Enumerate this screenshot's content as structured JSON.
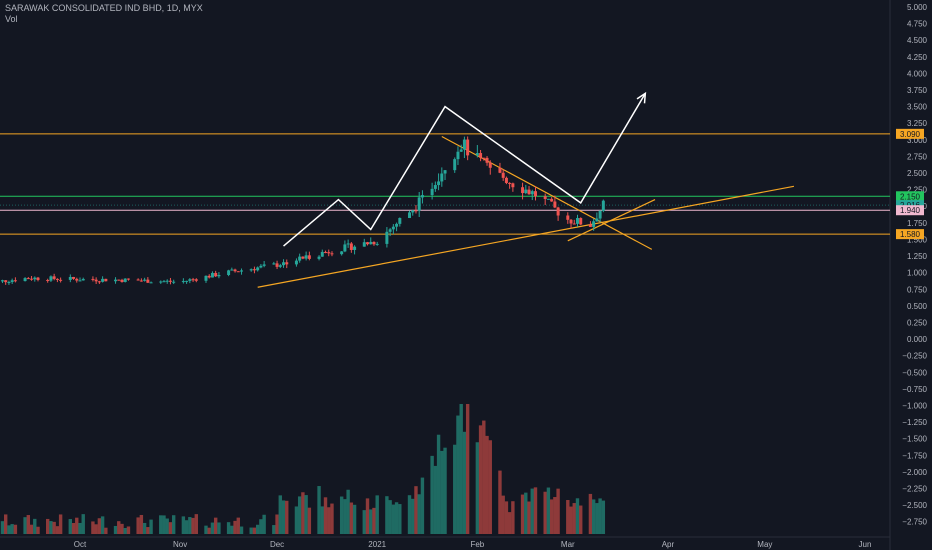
{
  "header": {
    "symbol_line": "SARAWAK CONSOLIDATED IND BHD, 1D, MYX",
    "volume_label": "Vol"
  },
  "colors": {
    "background": "#131722",
    "up": "#26a69a",
    "down": "#ef5350",
    "vol_up": "#1f6b63",
    "vol_down": "#8e3a3a",
    "orange": "#f5a623",
    "green_line": "#22c55e",
    "pink_line": "#f0b8cf",
    "white": "#ffffff"
  },
  "chart_data": {
    "type": "candlestick",
    "title": "SARAWAK CONSOLIDATED IND BHD, 1D, MYX",
    "y_axis": {
      "min": -2.875,
      "max": 5.0,
      "ticks": [
        "5.000",
        "4.750",
        "4.500",
        "4.250",
        "4.000",
        "3.750",
        "3.500",
        "3.250",
        "3.000",
        "2.750",
        "2.500",
        "2.250",
        "2.000",
        "1.750",
        "1.500",
        "1.250",
        "1.000",
        "0.750",
        "0.500",
        "0.250",
        "0.000",
        "−0.250",
        "−0.500",
        "−0.750",
        "−1.000",
        "−1.250",
        "−1.500",
        "−1.750",
        "−2.000",
        "−2.250",
        "−2.500",
        "−2.750"
      ]
    },
    "x_axis": {
      "labels": [
        "Oct",
        "Nov",
        "Dec",
        "2021",
        "Feb",
        "Mar",
        "Apr",
        "May",
        "Jun"
      ],
      "label_dates": [
        "2020-10-01",
        "2020-11-01",
        "2020-12-01",
        "2021-01-01",
        "2021-02-01",
        "2021-03-01",
        "2021-04-01",
        "2021-05-01",
        "2021-06-01"
      ]
    },
    "price_levels": [
      {
        "value": 3.09,
        "label": "3.090",
        "color": "#f5a623"
      },
      {
        "value": 2.15,
        "label": "2.150",
        "color": "#22c55e"
      },
      {
        "value": 2.016,
        "label": "2.016",
        "color": "#26a69a"
      },
      {
        "value": 1.94,
        "label": "1.940",
        "color": "#f0b8cf"
      },
      {
        "value": 1.58,
        "label": "1.580",
        "color": "#f5a623"
      }
    ],
    "price_series": [
      {
        "date": "2020-09-01",
        "close": 0.84
      },
      {
        "date": "2020-09-15",
        "close": 0.92
      },
      {
        "date": "2020-10-01",
        "close": 0.9
      },
      {
        "date": "2020-10-15",
        "close": 0.89
      },
      {
        "date": "2020-11-01",
        "close": 0.86
      },
      {
        "date": "2020-11-15",
        "close": 1.0
      },
      {
        "date": "2020-12-01",
        "close": 1.12
      },
      {
        "date": "2020-12-15",
        "close": 1.3
      },
      {
        "date": "2021-01-01",
        "close": 1.48
      },
      {
        "date": "2021-01-15",
        "close": 2.1
      },
      {
        "date": "2021-01-22",
        "close": 2.62
      },
      {
        "date": "2021-01-27",
        "close": 2.95
      },
      {
        "date": "2021-02-01",
        "close": 2.7
      },
      {
        "date": "2021-02-10",
        "close": 2.4
      },
      {
        "date": "2021-02-20",
        "close": 2.15
      },
      {
        "date": "2021-03-01",
        "close": 1.8
      },
      {
        "date": "2021-03-08",
        "close": 1.72
      },
      {
        "date": "2021-03-12",
        "close": 2.016
      }
    ],
    "volume_peak_date": "2021-01-27",
    "annotations": {
      "white_path": [
        {
          "date": "2020-12-03",
          "price": 1.4
        },
        {
          "date": "2020-12-20",
          "price": 2.1
        },
        {
          "date": "2020-12-30",
          "price": 1.65
        },
        {
          "date": "2021-01-22",
          "price": 3.5
        },
        {
          "date": "2021-03-05",
          "price": 2.05
        },
        {
          "date": "2021-03-25",
          "price": 3.7
        }
      ],
      "orange_trendlines": [
        {
          "from": {
            "date": "2020-11-25",
            "price": 0.78
          },
          "to": {
            "date": "2021-05-10",
            "price": 2.3
          }
        },
        {
          "from": {
            "date": "2021-01-21",
            "price": 3.05
          },
          "to": {
            "date": "2021-03-27",
            "price": 1.35
          }
        },
        {
          "from": {
            "date": "2021-03-01",
            "price": 1.48
          },
          "to": {
            "date": "2021-03-28",
            "price": 2.1
          }
        }
      ]
    }
  }
}
